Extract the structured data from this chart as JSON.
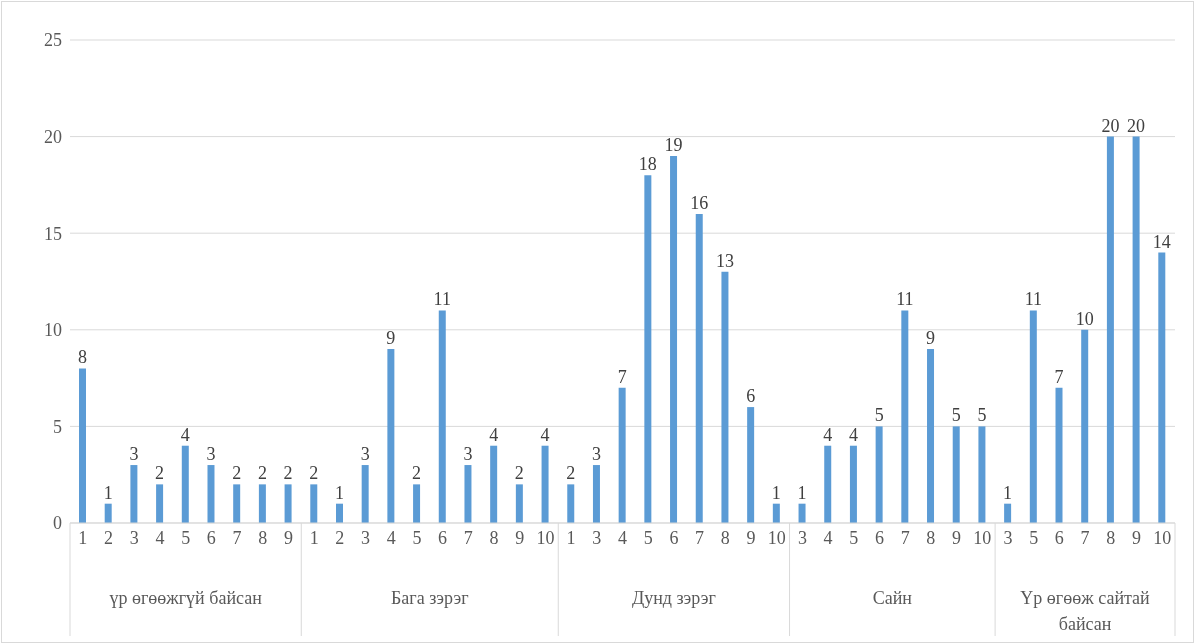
{
  "chart_data": {
    "type": "bar",
    "categories": [
      "1",
      "2",
      "3",
      "4",
      "5",
      "6",
      "7",
      "8",
      "9",
      "1",
      "2",
      "3",
      "4",
      "5",
      "6",
      "7",
      "8",
      "9",
      "10",
      "1",
      "3",
      "4",
      "5",
      "6",
      "7",
      "8",
      "9",
      "10",
      "3",
      "4",
      "5",
      "6",
      "7",
      "8",
      "9",
      "10",
      "3",
      "5",
      "6",
      "7",
      "8",
      "9",
      "10"
    ],
    "values": [
      8,
      1,
      3,
      2,
      4,
      3,
      2,
      2,
      2,
      2,
      1,
      3,
      9,
      2,
      11,
      3,
      4,
      2,
      4,
      2,
      3,
      7,
      18,
      19,
      16,
      13,
      6,
      1,
      1,
      4,
      4,
      5,
      11,
      9,
      5,
      5,
      1,
      11,
      7,
      10,
      20,
      20,
      14
    ],
    "color": "#5b9bd5",
    "ylim": [
      0,
      25
    ],
    "yticks": [
      0,
      5,
      10,
      15,
      20,
      25
    ],
    "grid": "y",
    "data_labels": true,
    "annotations": [
      "үр өгөөжгүй байсан",
      "Бага зэрэг",
      "Дунд зэрэг",
      "Сайн",
      "Үр өгөөж сайтай байсан"
    ]
  }
}
